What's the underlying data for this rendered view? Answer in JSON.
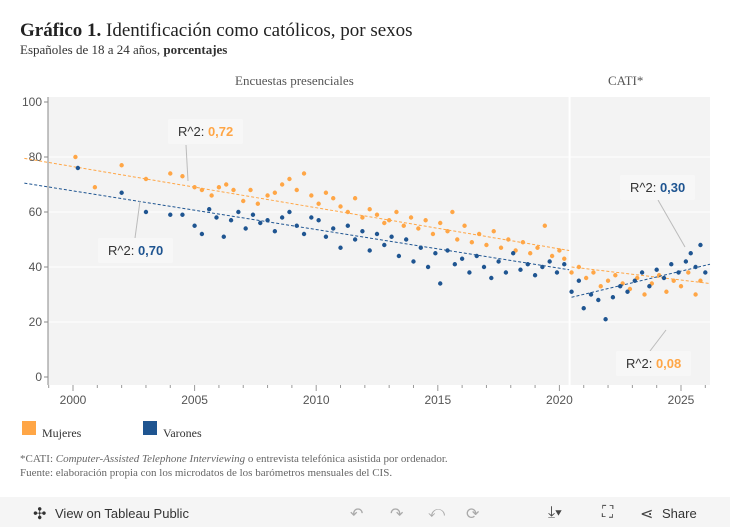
{
  "title": {
    "bold": "Gráfico 1.",
    "text": " Identificación como católicos, por sexos"
  },
  "subtitle": {
    "text": "Españoles de 18 a 24 años, ",
    "bold": "porcentajes"
  },
  "chart_data": {
    "type": "scatter",
    "panels": [
      "Encuestas presenciales",
      "CATI*"
    ],
    "xlim": [
      1999,
      2026.2
    ],
    "ylim": [
      0,
      100
    ],
    "x_ticks": [
      "2000",
      "2005",
      "2010",
      "2015",
      "2020",
      "2025"
    ],
    "y_ticks": [
      "0",
      "20",
      "40",
      "60",
      "80",
      "100"
    ],
    "grid": true,
    "legend": "bottom-left",
    "series": [
      {
        "name": "Mujeres",
        "color": "#ffa646",
        "points": [
          [
            2000.1,
            80
          ],
          [
            2000.9,
            69
          ],
          [
            2002.0,
            77
          ],
          [
            2003.0,
            72
          ],
          [
            2004.0,
            74
          ],
          [
            2004.5,
            73
          ],
          [
            2005,
            69
          ],
          [
            2005.3,
            68
          ],
          [
            2005.7,
            66
          ],
          [
            2006,
            69
          ],
          [
            2006.3,
            70
          ],
          [
            2006.6,
            68
          ],
          [
            2007,
            64
          ],
          [
            2007.3,
            68
          ],
          [
            2007.6,
            63
          ],
          [
            2008,
            66
          ],
          [
            2008.3,
            67
          ],
          [
            2008.6,
            70
          ],
          [
            2008.9,
            72
          ],
          [
            2009.2,
            68
          ],
          [
            2009.5,
            74
          ],
          [
            2009.8,
            66
          ],
          [
            2010.1,
            63
          ],
          [
            2010.4,
            67
          ],
          [
            2010.7,
            65
          ],
          [
            2011,
            62
          ],
          [
            2011.3,
            60
          ],
          [
            2011.6,
            65
          ],
          [
            2011.9,
            58
          ],
          [
            2012.2,
            61
          ],
          [
            2012.5,
            59
          ],
          [
            2012.8,
            56
          ],
          [
            2013,
            57
          ],
          [
            2013.3,
            60
          ],
          [
            2013.6,
            55
          ],
          [
            2013.9,
            58
          ],
          [
            2014.2,
            54
          ],
          [
            2014.5,
            57
          ],
          [
            2014.8,
            52
          ],
          [
            2015.1,
            56
          ],
          [
            2015.4,
            53
          ],
          [
            2015.6,
            60
          ],
          [
            2015.8,
            50
          ],
          [
            2016.1,
            55
          ],
          [
            2016.4,
            49
          ],
          [
            2016.7,
            52
          ],
          [
            2017,
            48
          ],
          [
            2017.3,
            53
          ],
          [
            2017.6,
            47
          ],
          [
            2017.9,
            50
          ],
          [
            2018.2,
            46
          ],
          [
            2018.5,
            49
          ],
          [
            2018.8,
            45
          ],
          [
            2019.1,
            47
          ],
          [
            2019.4,
            55
          ],
          [
            2019.7,
            44
          ],
          [
            2020,
            46
          ],
          [
            2020.2,
            43
          ],
          [
            2020.5,
            38
          ],
          [
            2020.8,
            40
          ],
          [
            2021.1,
            36
          ],
          [
            2021.4,
            38
          ],
          [
            2021.7,
            33
          ],
          [
            2022,
            35
          ],
          [
            2022.3,
            37
          ],
          [
            2022.6,
            34
          ],
          [
            2022.9,
            32
          ],
          [
            2023.2,
            36
          ],
          [
            2023.5,
            30
          ],
          [
            2023.8,
            34
          ],
          [
            2024.1,
            37
          ],
          [
            2024.4,
            31
          ],
          [
            2024.7,
            35
          ],
          [
            2025,
            33
          ],
          [
            2025.3,
            38
          ],
          [
            2025.6,
            30
          ],
          [
            2025.8,
            35
          ]
        ],
        "trends": [
          {
            "from": [
              1998,
              79.5
            ],
            "to": [
              2020.4,
              46
            ]
          },
          {
            "from": [
              2020.5,
              40
            ],
            "to": [
              2026.2,
              34
            ]
          }
        ]
      },
      {
        "name": "Varones",
        "color": "#1f5591",
        "points": [
          [
            2000.2,
            76
          ],
          [
            2002,
            67
          ],
          [
            2003,
            60
          ],
          [
            2004,
            59
          ],
          [
            2004.5,
            59
          ],
          [
            2005,
            55
          ],
          [
            2005.3,
            52
          ],
          [
            2005.6,
            61
          ],
          [
            2005.9,
            58
          ],
          [
            2006.2,
            51
          ],
          [
            2006.5,
            57
          ],
          [
            2006.8,
            60
          ],
          [
            2007.1,
            54
          ],
          [
            2007.4,
            59
          ],
          [
            2007.7,
            56
          ],
          [
            2008,
            57
          ],
          [
            2008.3,
            53
          ],
          [
            2008.6,
            58
          ],
          [
            2008.9,
            60
          ],
          [
            2009.2,
            55
          ],
          [
            2009.5,
            52
          ],
          [
            2009.8,
            58
          ],
          [
            2010.1,
            57
          ],
          [
            2010.4,
            51
          ],
          [
            2010.7,
            54
          ],
          [
            2011,
            47
          ],
          [
            2011.3,
            55
          ],
          [
            2011.6,
            50
          ],
          [
            2011.9,
            53
          ],
          [
            2012.2,
            46
          ],
          [
            2012.5,
            52
          ],
          [
            2012.8,
            48
          ],
          [
            2013.1,
            51
          ],
          [
            2013.4,
            44
          ],
          [
            2013.7,
            50
          ],
          [
            2014,
            42
          ],
          [
            2014.3,
            47
          ],
          [
            2014.6,
            40
          ],
          [
            2014.9,
            45
          ],
          [
            2015.1,
            34
          ],
          [
            2015.4,
            46
          ],
          [
            2015.7,
            41
          ],
          [
            2016,
            43
          ],
          [
            2016.3,
            38
          ],
          [
            2016.6,
            44
          ],
          [
            2016.9,
            40
          ],
          [
            2017.2,
            36
          ],
          [
            2017.5,
            42
          ],
          [
            2017.8,
            38
          ],
          [
            2018.1,
            45
          ],
          [
            2018.4,
            39
          ],
          [
            2018.7,
            41
          ],
          [
            2019,
            37
          ],
          [
            2019.3,
            40
          ],
          [
            2019.6,
            42
          ],
          [
            2019.9,
            38
          ],
          [
            2020.2,
            41
          ],
          [
            2020.5,
            31
          ],
          [
            2020.8,
            35
          ],
          [
            2021,
            25
          ],
          [
            2021.3,
            30
          ],
          [
            2021.6,
            28
          ],
          [
            2021.9,
            21
          ],
          [
            2022.2,
            29
          ],
          [
            2022.5,
            33
          ],
          [
            2022.8,
            31
          ],
          [
            2023.1,
            35
          ],
          [
            2023.4,
            38
          ],
          [
            2023.7,
            33
          ],
          [
            2024,
            39
          ],
          [
            2024.3,
            36
          ],
          [
            2024.6,
            41
          ],
          [
            2024.9,
            38
          ],
          [
            2025.2,
            42
          ],
          [
            2025.4,
            45
          ],
          [
            2025.6,
            40
          ],
          [
            2025.8,
            48
          ],
          [
            2026,
            38
          ]
        ],
        "trends": [
          {
            "from": [
              1998,
              70.5
            ],
            "to": [
              2020.4,
              39
            ]
          },
          {
            "from": [
              2020.5,
              29
            ],
            "to": [
              2026.2,
              41
            ]
          }
        ]
      }
    ],
    "annotations": [
      {
        "label": "R^2: ",
        "value": "0,72",
        "series": "Mujeres"
      },
      {
        "label": "R^2: ",
        "value": "0,70",
        "series": "Varones"
      },
      {
        "label": "R^2: ",
        "value": "0,30",
        "series": "Varones"
      },
      {
        "label": "R^2: ",
        "value": "0,08",
        "series": "Mujeres"
      }
    ]
  },
  "notes": {
    "cati_prefix": "*CATI: ",
    "cati_italic": "Computer-Assisted Telephone Interviewing",
    "cati_suffix": " o entrevista telefónica asistida por ordenador.",
    "source": "Fuente: elaboración propia con los microdatos de los barómetros mensuales del CIS."
  },
  "toolbar": {
    "view": "View on Tableau Public",
    "share": "Share"
  }
}
